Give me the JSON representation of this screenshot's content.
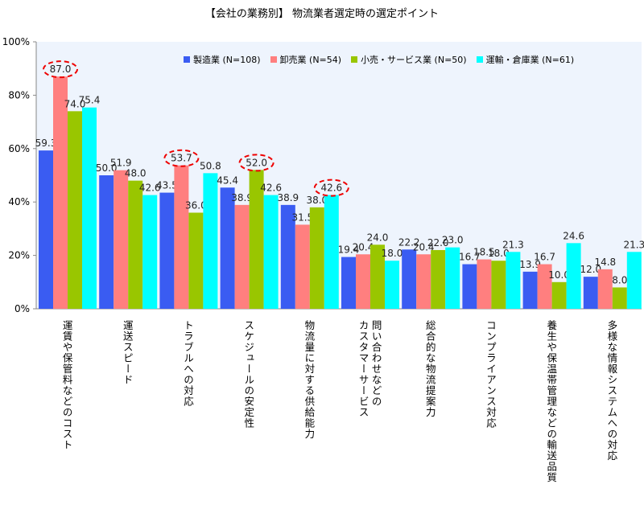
{
  "chart_data": {
    "type": "bar",
    "title": "【会社の業務別】 物流業者選定時の選定ポイント",
    "xlabel": "",
    "ylabel": "",
    "ylim": [
      0,
      100
    ],
    "yticks": [
      "0%",
      "20%",
      "40%",
      "60%",
      "80%",
      "100%"
    ],
    "categories": [
      "運賃や保管料などのコスト",
      "運送スピード",
      "トラブルへの対応",
      "スケジュールの安定性",
      "物流量に対する供給能力",
      "問い合わせなどの\nカスタマーサービス",
      "総合的な物流提案力",
      "コンプライアンス対応",
      "養生や保温帯管理などの輸送品質",
      "多様な情報システムへの対応"
    ],
    "series": [
      {
        "name": "製造業 (N=108)",
        "color": "#3a5cf2",
        "values": [
          59.3,
          50.0,
          43.5,
          45.4,
          38.9,
          19.4,
          22.2,
          16.7,
          13.9,
          12.0
        ]
      },
      {
        "name": "卸売業 (N=54)",
        "color": "#ff7f7f",
        "values": [
          87.0,
          51.9,
          53.7,
          38.9,
          31.5,
          20.4,
          20.4,
          18.5,
          16.7,
          14.8
        ]
      },
      {
        "name": "小売・サービス業 (N=50)",
        "color": "#99c600",
        "values": [
          74.0,
          48.0,
          36.0,
          52.0,
          38.0,
          24.0,
          22.0,
          18.0,
          10.0,
          8.0
        ]
      },
      {
        "name": "運輸・倉庫業 (N=61)",
        "color": "#00ffff",
        "values": [
          75.4,
          42.6,
          50.8,
          42.6,
          42.6,
          18.0,
          23.0,
          21.3,
          24.6,
          21.3
        ]
      }
    ],
    "highlights": [
      {
        "category": 0,
        "series": 1
      },
      {
        "category": 2,
        "series": 1
      },
      {
        "category": 3,
        "series": 2
      },
      {
        "category": 4,
        "series": 3
      }
    ],
    "legend": "top-right",
    "grid": false
  }
}
